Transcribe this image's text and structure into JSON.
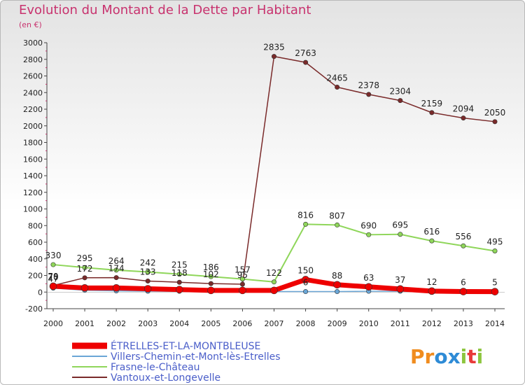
{
  "header": {
    "title": "Evolution du Montant de la Dette par Habitant",
    "subtitle": "(en €)"
  },
  "logo": {
    "letters": [
      "P",
      "r",
      "o",
      "x",
      "i",
      "t",
      "i"
    ],
    "colors": [
      "#f08c1e",
      "#f08c1e",
      "#2e8bd6",
      "#2e8bd6",
      "#8dc63f",
      "#e83a3a",
      "#8dc63f"
    ]
  },
  "chart_data": {
    "type": "line",
    "x": [
      "2000",
      "2001",
      "2002",
      "2003",
      "2004",
      "2005",
      "2006",
      "2007",
      "2008",
      "2009",
      "2010",
      "2011",
      "2012",
      "2013",
      "2014"
    ],
    "ylim": [
      -200,
      3000
    ],
    "yticks": [
      -200,
      0,
      200,
      400,
      600,
      800,
      1000,
      1200,
      1400,
      1600,
      1800,
      2000,
      2200,
      2400,
      2600,
      2800,
      3000
    ],
    "grid": false,
    "legend_position": "bottom-left",
    "series": [
      {
        "name": "ÉTRELLES-ET-LA-MONTBLEUSE",
        "color": "#ee0000",
        "values": [
          70,
          50,
          50,
          40,
          30,
          20,
          20,
          20,
          150,
          88,
          63,
          37,
          12,
          6,
          5
        ],
        "labels": [
          "70",
          "",
          "",
          "",
          "",
          "",
          "",
          "",
          "150",
          "88",
          "63",
          "37",
          "12",
          "6",
          "5"
        ]
      },
      {
        "name": "Villers-Chemin-et-Mont-lès-Etrelles",
        "color": "#6aa6d6",
        "values": [
          47,
          22,
          15,
          10,
          10,
          6,
          6,
          6,
          6,
          6,
          10,
          10,
          8,
          5,
          4
        ],
        "labels": [
          "47",
          "",
          "",
          "",
          "",
          "",
          "",
          "",
          "6",
          "",
          "",
          "",
          "",
          "",
          ""
        ]
      },
      {
        "name": "Frasne-le-Château",
        "color": "#8fd65a",
        "values": [
          330,
          295,
          264,
          242,
          215,
          186,
          157,
          122,
          816,
          807,
          690,
          695,
          616,
          556,
          495
        ],
        "labels": [
          "330",
          "295",
          "264",
          "242",
          "215",
          "186",
          "157",
          "122",
          "816",
          "807",
          "690",
          "695",
          "616",
          "556",
          "495"
        ]
      },
      {
        "name": "Vantoux-et-Longevelle",
        "color": "#7a2a2a",
        "values": [
          79,
          172,
          174,
          133,
          118,
          102,
          95,
          2835,
          2763,
          2465,
          2378,
          2304,
          2159,
          2094,
          2050
        ],
        "labels": [
          "79",
          "172",
          "174",
          "133",
          "118",
          "102",
          "95",
          "2835",
          "2763",
          "2465",
          "2378",
          "2304",
          "2159",
          "2094",
          "2050"
        ]
      }
    ]
  }
}
